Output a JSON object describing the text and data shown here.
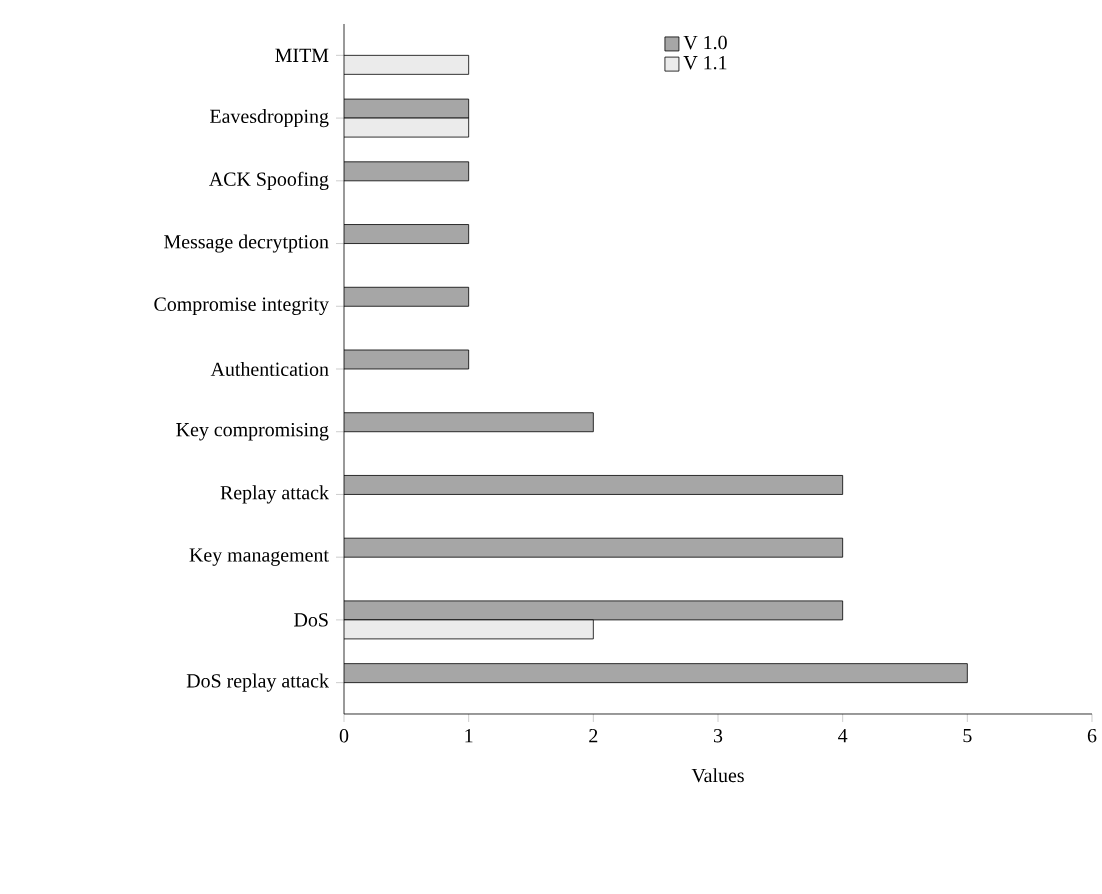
{
  "chart_data": {
    "type": "bar",
    "orientation": "horizontal",
    "xlabel": "Values",
    "categories": [
      "MITM",
      "Eavesdropping",
      "ACK Spoofing",
      "Message decrytption",
      "Compromise integrity",
      "Authentication",
      "Key compromising",
      "Replay attack",
      "Key management",
      "DoS",
      "DoS replay attack"
    ],
    "series": [
      {
        "name": "V 1.0",
        "color": "#a6a6a6",
        "values": [
          null,
          1,
          1,
          1,
          1,
          1,
          2,
          4,
          4,
          4,
          5
        ]
      },
      {
        "name": "V 1.1",
        "color": "#ebebeb",
        "values": [
          1,
          1,
          null,
          null,
          null,
          null,
          null,
          null,
          null,
          2,
          null
        ]
      }
    ],
    "xlim": [
      0,
      6
    ],
    "xticks": [
      0,
      1,
      2,
      3,
      4,
      5,
      6
    ],
    "legend": "top right",
    "grid": false
  }
}
